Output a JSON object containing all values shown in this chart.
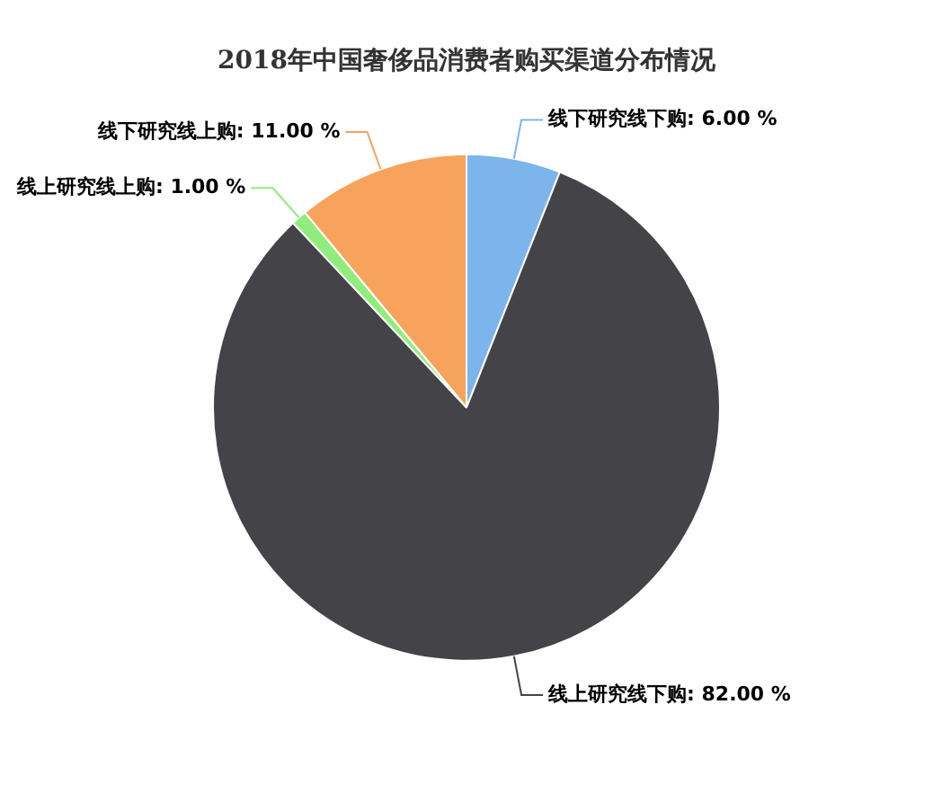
{
  "chart_data": {
    "type": "pie",
    "title": "2018年中国奢侈品消费者购买渠道分布情况",
    "categories": [
      "线下研究线下购",
      "线上研究线下购",
      "线上研究线上购",
      "线下研究线上购"
    ],
    "values": [
      6,
      82,
      1,
      11
    ],
    "colors": [
      "#7cb5ec",
      "#434348",
      "#90ed7d",
      "#f7a35c"
    ],
    "value_labels": [
      "6.00 %",
      "82.00 %",
      "1.00 %",
      "11.00 %"
    ],
    "legend": false
  }
}
